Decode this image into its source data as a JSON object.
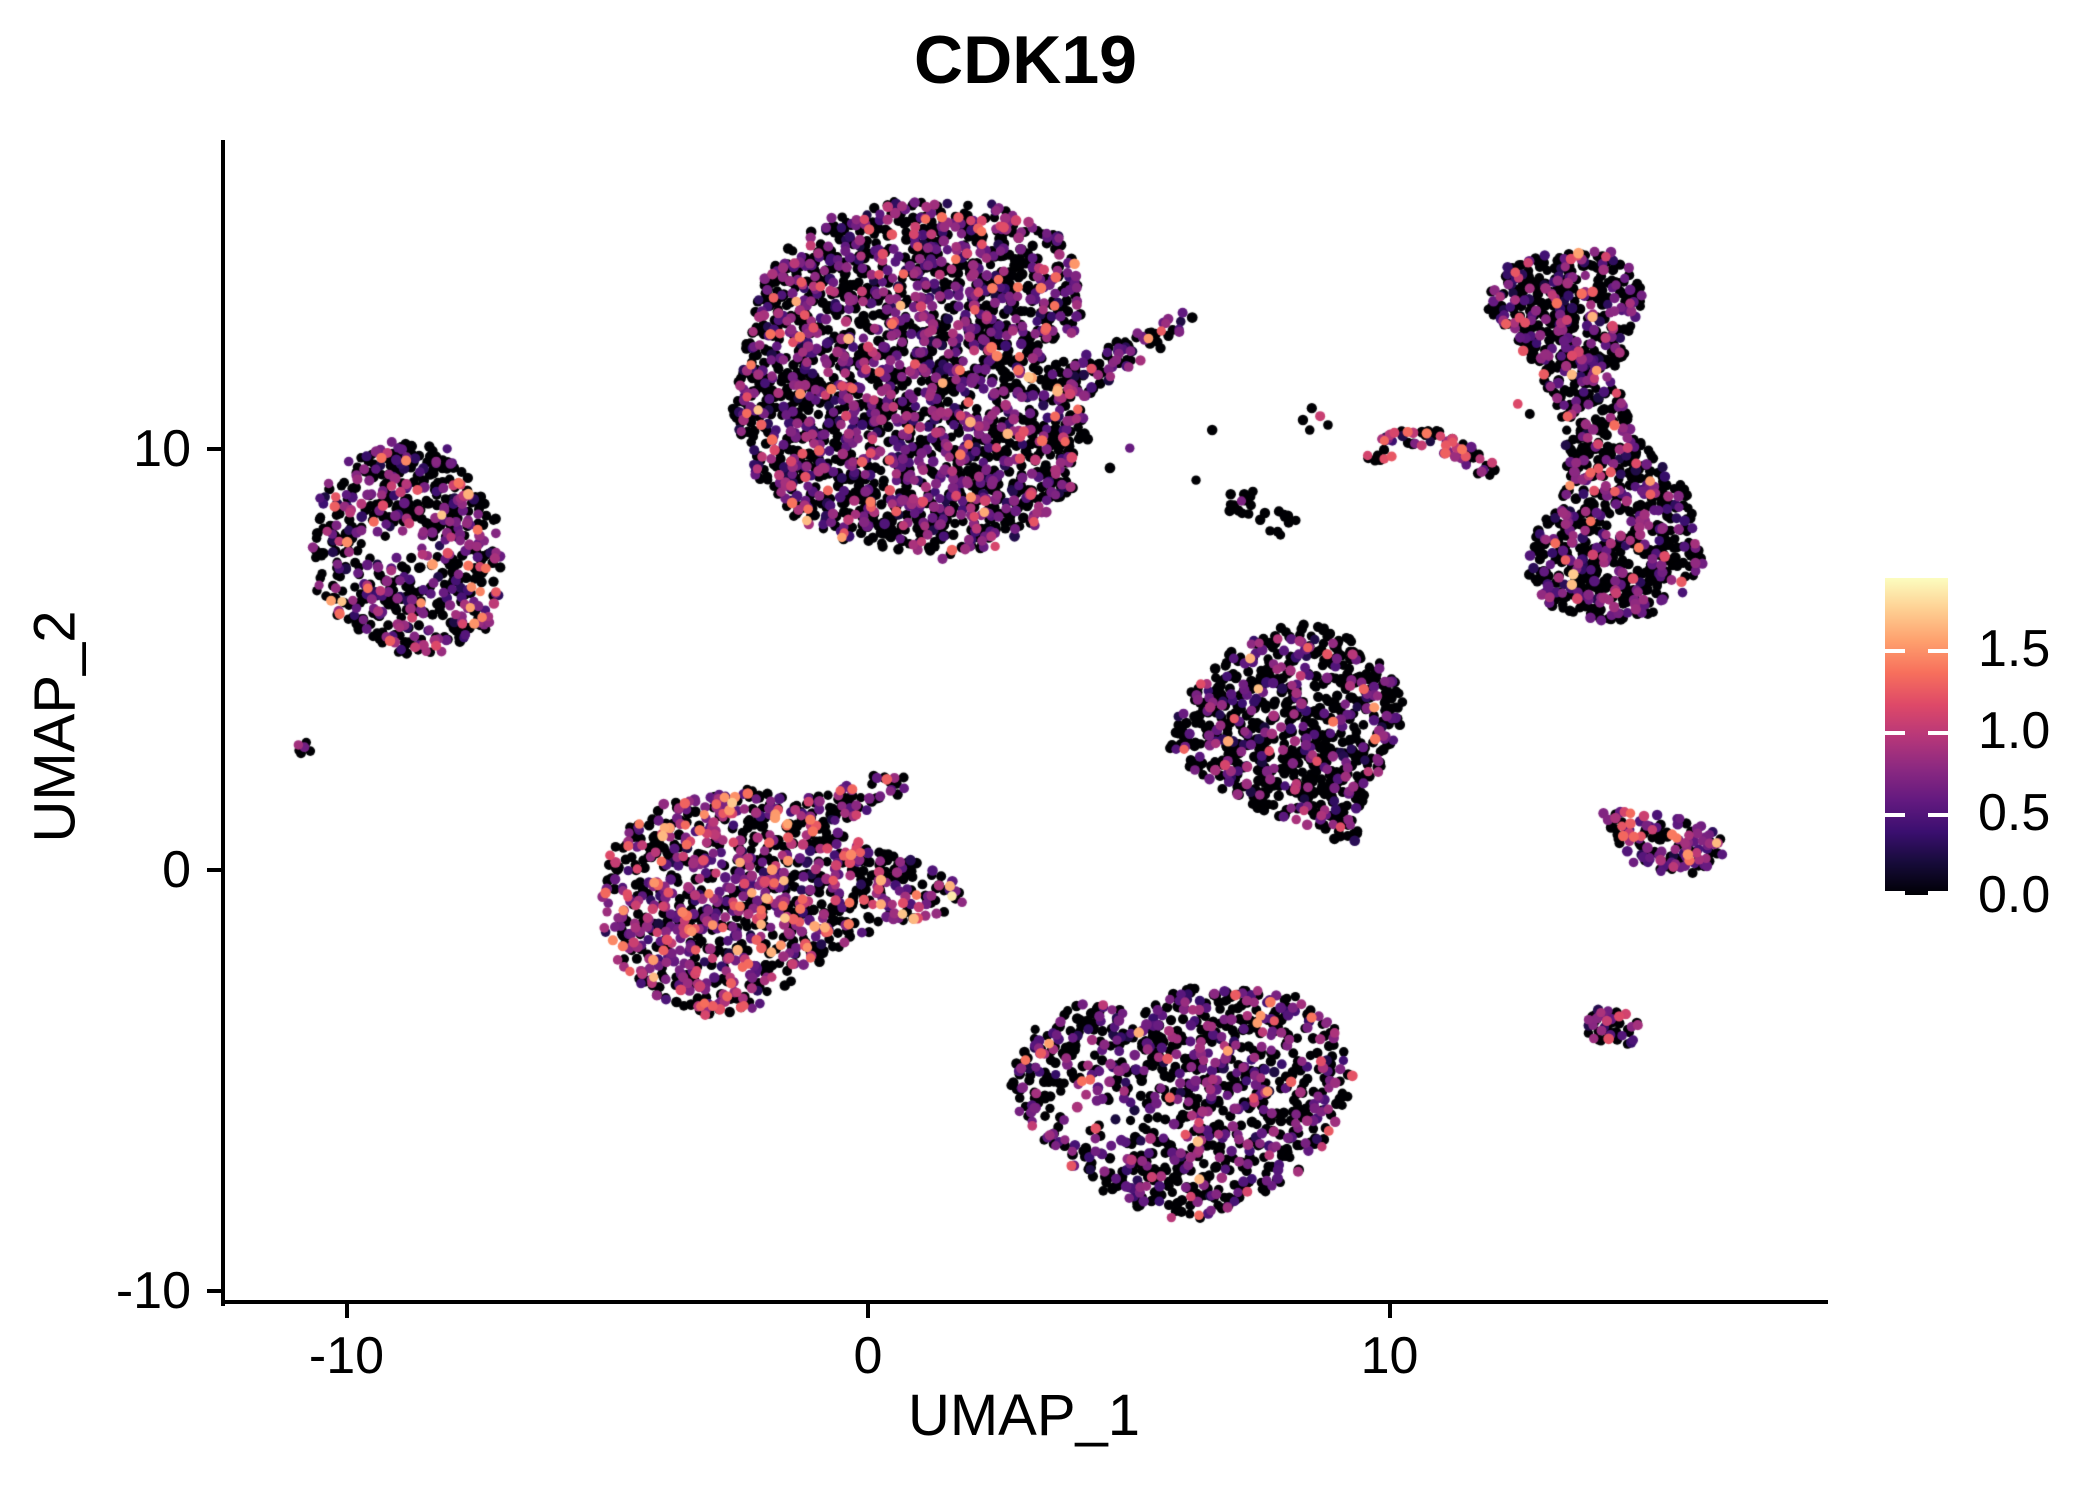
{
  "title": "CDK19",
  "x_axis": {
    "label": "UMAP_1",
    "tick_values": [
      -10,
      0,
      10
    ],
    "tick_labels": [
      "-10",
      "0",
      "10"
    ]
  },
  "y_axis": {
    "label": "UMAP_2",
    "tick_values": [
      10,
      0,
      -10
    ],
    "tick_labels": [
      "10",
      "0",
      "-10"
    ]
  },
  "colorbar": {
    "tick_values": [
      0.0,
      0.5,
      1.0,
      1.5
    ],
    "tick_labels": [
      "0.0",
      "0.5",
      "1.0",
      "1.5"
    ],
    "vmin": 0,
    "vmax": 1.93,
    "tick_color": "#ffffff"
  },
  "chart_data": {
    "type": "scatter",
    "title": "CDK19",
    "xlabel": "UMAP_1",
    "ylabel": "UMAP_2",
    "x_ticks": [
      -10,
      0,
      10
    ],
    "y_ticks": [
      -10,
      0,
      10
    ],
    "x_range": [
      -12.4,
      18.4
    ],
    "y_range": [
      -10.3,
      17.3
    ],
    "grid": false,
    "legend_position": "right",
    "point_radius_px": 5,
    "color_scale": {
      "name": "magma",
      "domain": [
        0,
        1.93
      ],
      "stops": [
        [
          0.0,
          "#000004"
        ],
        [
          0.1,
          "#160b39"
        ],
        [
          0.2,
          "#3b0f70"
        ],
        [
          0.3,
          "#641a80"
        ],
        [
          0.4,
          "#8c2981"
        ],
        [
          0.5,
          "#b73779"
        ],
        [
          0.6,
          "#de4968"
        ],
        [
          0.7,
          "#f76f5c"
        ],
        [
          0.8,
          "#fe9f6d"
        ],
        [
          0.9,
          "#fecf92"
        ],
        [
          1.0,
          "#fcfdbf"
        ]
      ]
    },
    "expr_bins": {
      "zero": [
        0,
        0.04
      ],
      "low": [
        0.2,
        0.45
      ],
      "mid": [
        0.45,
        0.92
      ],
      "high": [
        0.95,
        1.4
      ],
      "hot": [
        1.42,
        1.72
      ]
    },
    "clusters": [
      {
        "name": "top-large-blob",
        "n": 2600,
        "expr": [
          0.57,
          0.07,
          0.29,
          0.06,
          0.01
        ],
        "outline": [
          [
            -2.36,
            12.35
          ],
          [
            -1.98,
            14.13
          ],
          [
            -0.92,
            15.32
          ],
          [
            0.61,
            15.91
          ],
          [
            2.34,
            15.8
          ],
          [
            3.68,
            15.08
          ],
          [
            4.16,
            14.01
          ],
          [
            3.97,
            12.83
          ],
          [
            3.2,
            12.47
          ],
          [
            3.68,
            12.0
          ],
          [
            4.54,
            12.35
          ],
          [
            5.41,
            12.95
          ],
          [
            6.08,
            13.3
          ],
          [
            6.37,
            13.11
          ],
          [
            5.89,
            12.59
          ],
          [
            4.83,
            11.83
          ],
          [
            4.03,
            11.16
          ],
          [
            4.22,
            10.1
          ],
          [
            3.83,
            8.79
          ],
          [
            2.82,
            7.84
          ],
          [
            1.48,
            7.43
          ],
          [
            0.0,
            7.72
          ],
          [
            -1.3,
            8.31
          ],
          [
            -2.11,
            9.31
          ],
          [
            -2.59,
            10.69
          ]
        ]
      },
      {
        "name": "top-right-banana",
        "n": 1150,
        "expr": [
          0.66,
          0.07,
          0.235,
          0.03,
          0.005
        ],
        "outline": [
          [
            11.87,
            13.3
          ],
          [
            12.12,
            14.2
          ],
          [
            12.98,
            14.68
          ],
          [
            14.04,
            14.73
          ],
          [
            14.77,
            14.25
          ],
          [
            14.9,
            13.54
          ],
          [
            14.52,
            12.59
          ],
          [
            14.38,
            11.52
          ],
          [
            14.71,
            10.69
          ],
          [
            15.19,
            9.74
          ],
          [
            15.76,
            8.91
          ],
          [
            16.05,
            7.84
          ],
          [
            15.86,
            6.77
          ],
          [
            15.09,
            6.06
          ],
          [
            14.04,
            5.89
          ],
          [
            13.04,
            6.22
          ],
          [
            12.66,
            7.13
          ],
          [
            12.85,
            8.08
          ],
          [
            13.27,
            8.79
          ],
          [
            13.46,
            9.74
          ],
          [
            13.27,
            10.69
          ],
          [
            12.98,
            11.64
          ],
          [
            12.54,
            12.47
          ]
        ]
      },
      {
        "name": "left-ring",
        "n": 620,
        "expr": [
          0.62,
          0.07,
          0.25,
          0.05,
          0.01
        ],
        "outline": [
          [
            -10.64,
            7.48
          ],
          [
            -10.51,
            8.91
          ],
          [
            -9.93,
            9.79
          ],
          [
            -9.07,
            10.21
          ],
          [
            -8.11,
            10.02
          ],
          [
            -7.63,
            9.26
          ],
          [
            -7.15,
            8.31
          ],
          [
            -7.02,
            7.13
          ],
          [
            -7.15,
            6.06
          ],
          [
            -7.73,
            5.27
          ],
          [
            -8.5,
            5.11
          ],
          [
            -9.36,
            5.27
          ],
          [
            -10.12,
            5.94
          ],
          [
            -10.55,
            6.77
          ]
        ],
        "holes": [
          {
            "c": [
              -8.82,
              7.65
            ],
            "r": 0.55,
            "keep": 0.15
          }
        ]
      },
      {
        "name": "center-left-high-expr",
        "n": 1150,
        "expr": [
          0.49,
          0.05,
          0.28,
          0.145,
          0.035
        ],
        "outline": [
          [
            -5.18,
            -0.83
          ],
          [
            -4.91,
            0.52
          ],
          [
            -4.22,
            1.38
          ],
          [
            -3.22,
            1.85
          ],
          [
            -2.17,
            1.9
          ],
          [
            -1.44,
            1.59
          ],
          [
            -0.58,
            1.9
          ],
          [
            0.08,
            2.26
          ],
          [
            0.77,
            2.19
          ],
          [
            0.61,
            1.78
          ],
          [
            -0.12,
            1.38
          ],
          [
            -0.73,
            0.95
          ],
          [
            0.04,
            0.59
          ],
          [
            0.9,
            0.19
          ],
          [
            1.57,
            -0.29
          ],
          [
            1.92,
            -0.71
          ],
          [
            1.38,
            -1.07
          ],
          [
            0.52,
            -1.31
          ],
          [
            -0.35,
            -1.66
          ],
          [
            -1.3,
            -2.49
          ],
          [
            -2.17,
            -3.21
          ],
          [
            -3.03,
            -3.44
          ],
          [
            -3.99,
            -3.09
          ],
          [
            -4.66,
            -2.26
          ],
          [
            -5.04,
            -1.54
          ]
        ]
      },
      {
        "name": "middle-triangle",
        "n": 780,
        "expr": [
          0.72,
          0.06,
          0.19,
          0.025,
          0.005
        ],
        "outline": [
          [
            5.75,
            2.97
          ],
          [
            6.1,
            4.23
          ],
          [
            6.9,
            5.08
          ],
          [
            7.75,
            5.75
          ],
          [
            8.71,
            5.89
          ],
          [
            9.4,
            5.46
          ],
          [
            9.97,
            4.8
          ],
          [
            10.24,
            3.92
          ],
          [
            10.11,
            2.9
          ],
          [
            9.66,
            1.9
          ],
          [
            9.24,
            1.24
          ],
          [
            9.43,
            0.76
          ],
          [
            9.05,
            0.52
          ],
          [
            8.71,
            1.0
          ],
          [
            7.94,
            1.19
          ],
          [
            7.13,
            1.66
          ],
          [
            6.37,
            2.26
          ]
        ]
      },
      {
        "name": "bottom-center",
        "n": 1000,
        "expr": [
          0.6,
          0.06,
          0.29,
          0.04,
          0.01
        ],
        "outline": [
          [
            2.76,
            -5.23
          ],
          [
            3.01,
            -4.04
          ],
          [
            3.68,
            -3.33
          ],
          [
            4.45,
            -3.09
          ],
          [
            5.12,
            -3.37
          ],
          [
            5.7,
            -3.09
          ],
          [
            6.46,
            -2.73
          ],
          [
            7.42,
            -2.73
          ],
          [
            8.28,
            -3.09
          ],
          [
            8.96,
            -3.68
          ],
          [
            9.28,
            -4.51
          ],
          [
            9.24,
            -5.46
          ],
          [
            8.86,
            -6.41
          ],
          [
            8.28,
            -7.13
          ],
          [
            7.52,
            -7.72
          ],
          [
            6.65,
            -8.19
          ],
          [
            5.79,
            -8.27
          ],
          [
            4.93,
            -7.96
          ],
          [
            4.16,
            -7.36
          ],
          [
            3.45,
            -6.65
          ],
          [
            2.95,
            -5.94
          ]
        ],
        "holes": [
          {
            "c": [
              4.45,
              -5.82
            ],
            "r": 0.85,
            "keep": 0.3
          },
          {
            "c": [
              5.7,
              -5.82
            ],
            "r": 0.6,
            "keep": 0.5
          }
        ]
      },
      {
        "name": "right-wedge",
        "n": 130,
        "expr": [
          0.38,
          0.05,
          0.45,
          0.11,
          0.01
        ],
        "outline": [
          [
            14.0,
            1.47
          ],
          [
            14.8,
            1.31
          ],
          [
            15.57,
            1.24
          ],
          [
            16.24,
            1.0
          ],
          [
            16.47,
            0.52
          ],
          [
            16.01,
            0.05
          ],
          [
            15.34,
            -0.17
          ],
          [
            14.77,
            0.12
          ],
          [
            14.32,
            0.67
          ],
          [
            14.0,
            1.14
          ]
        ]
      },
      {
        "name": "diagonal-streak",
        "n": 70,
        "expr": [
          0.42,
          0.05,
          0.28,
          0.25,
          0
        ],
        "outline": [
          [
            9.51,
            9.93
          ],
          [
            10.16,
            10.5
          ],
          [
            10.62,
            10.59
          ],
          [
            11.16,
            10.31
          ],
          [
            11.7,
            9.93
          ],
          [
            12.02,
            9.64
          ],
          [
            11.89,
            9.36
          ],
          [
            11.35,
            9.69
          ],
          [
            10.78,
            10.02
          ],
          [
            10.3,
            10.07
          ],
          [
            9.78,
            9.6
          ]
        ]
      },
      {
        "name": "tiny-left-dot",
        "n": 6,
        "expr": [
          0.55,
          0,
          0.25,
          0.2,
          0
        ],
        "disc": {
          "c": [
            -10.78,
            2.92
          ],
          "r": 0.18
        }
      },
      {
        "name": "small-round-right",
        "n": 48,
        "expr": [
          0.52,
          0.06,
          0.29,
          0.13,
          0
        ],
        "disc": {
          "c": [
            14.27,
            -3.75
          ],
          "r": 0.52
        }
      },
      {
        "name": "mid-speck-a",
        "n": 13,
        "expr": [
          0.92,
          0,
          0.08,
          0,
          0
        ],
        "disc": {
          "c": [
            7.17,
            8.74
          ],
          "r": 0.33
        }
      },
      {
        "name": "mid-speck-b",
        "n": 12,
        "expr": [
          0.82,
          0,
          0.18,
          0,
          0
        ],
        "disc": {
          "c": [
            7.86,
            8.27
          ],
          "r": 0.35
        }
      }
    ],
    "singles": [
      [
        3.6,
        10.5,
        0
      ],
      [
        4.1,
        10.69,
        0
      ],
      [
        3.83,
        9.93,
        0
      ],
      [
        4.64,
        9.55,
        0
      ],
      [
        5.02,
        10.02,
        0.6
      ],
      [
        6.29,
        9.26,
        0
      ],
      [
        6.6,
        10.45,
        0
      ],
      [
        8.34,
        10.69,
        0
      ],
      [
        8.51,
        10.97,
        0
      ],
      [
        8.67,
        10.78,
        1.05
      ],
      [
        8.82,
        10.57,
        0
      ],
      [
        8.47,
        10.45,
        0
      ],
      [
        12.46,
        11.07,
        1.15
      ],
      [
        12.69,
        10.83,
        0
      ],
      [
        12.6,
        13.0,
        1.2
      ]
    ],
    "extra_points": [
      [
        1.61,
        -0.62,
        1.85
      ],
      [
        -3.9,
        1.0,
        1.6
      ],
      [
        -2.5,
        -1.9,
        1.62
      ],
      [
        -4.1,
        -0.3,
        1.5
      ],
      [
        -7.55,
        5.85,
        1.5
      ],
      [
        -7.4,
        6.0,
        1.42
      ],
      [
        6.9,
        -4.3,
        1.55
      ],
      [
        -0.5,
        7.9,
        1.55
      ]
    ]
  }
}
